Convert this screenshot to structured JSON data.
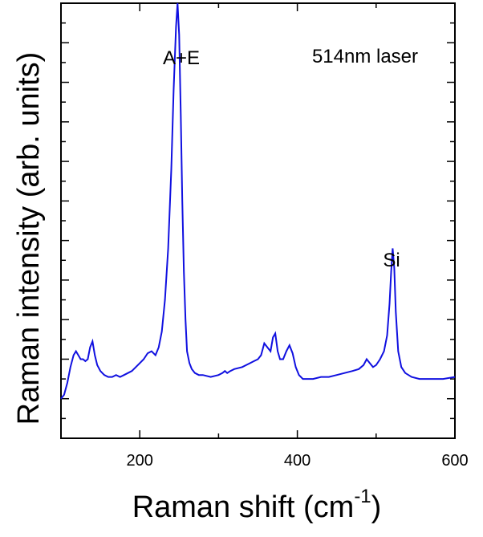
{
  "chart_data": {
    "type": "line",
    "title": "",
    "xlabel": "Raman shift (cm",
    "xlabel_sup": "-1",
    "xlabel_close": ")",
    "ylabel": "Raman intensity (arb. units)",
    "xlim": [
      100,
      600
    ],
    "ylim": [
      -0.1,
      1.0
    ],
    "x_ticks": [
      200,
      400,
      600
    ],
    "y_tick_labels_shown": false,
    "grid": false,
    "line_color": "#1010e0",
    "annotations": [
      {
        "text": "514nm laser",
        "x": 458,
        "y": 0.92
      },
      {
        "text": "A+E",
        "x": 250,
        "y": 0.92
      },
      {
        "text": "Si",
        "x": 521,
        "y": 0.43
      }
    ],
    "series": [
      {
        "x": [
          100,
          104,
          108,
          112,
          116,
          119,
          122,
          125,
          128,
          131,
          134,
          137,
          140,
          143,
          146,
          150,
          155,
          160,
          165,
          170,
          175,
          180,
          185,
          190,
          195,
          200,
          205,
          210,
          215,
          220,
          224,
          228,
          232,
          236,
          240,
          243,
          246,
          248,
          250,
          252,
          254,
          256,
          258,
          260,
          263,
          266,
          270,
          275,
          280,
          290,
          300,
          305,
          308,
          311,
          315,
          320,
          330,
          340,
          345,
          350,
          354,
          358,
          362,
          366,
          369,
          372,
          375,
          378,
          382,
          386,
          390,
          394,
          398,
          402,
          407,
          412,
          420,
          430,
          440,
          450,
          460,
          470,
          478,
          484,
          488,
          492,
          496,
          500,
          505,
          510,
          514,
          517,
          519,
          521,
          523,
          525,
          528,
          532,
          537,
          545,
          555,
          570,
          585,
          600
        ],
        "y": [
          0.0,
          0.01,
          0.04,
          0.08,
          0.11,
          0.12,
          0.11,
          0.1,
          0.1,
          0.095,
          0.1,
          0.13,
          0.145,
          0.11,
          0.085,
          0.07,
          0.06,
          0.055,
          0.055,
          0.06,
          0.055,
          0.06,
          0.065,
          0.07,
          0.08,
          0.09,
          0.1,
          0.115,
          0.12,
          0.11,
          0.13,
          0.17,
          0.25,
          0.38,
          0.58,
          0.78,
          0.94,
          1.0,
          0.92,
          0.72,
          0.5,
          0.32,
          0.2,
          0.12,
          0.09,
          0.075,
          0.065,
          0.06,
          0.06,
          0.055,
          0.06,
          0.065,
          0.07,
          0.065,
          0.07,
          0.075,
          0.08,
          0.09,
          0.095,
          0.1,
          0.11,
          0.14,
          0.13,
          0.12,
          0.155,
          0.165,
          0.12,
          0.1,
          0.1,
          0.12,
          0.135,
          0.115,
          0.08,
          0.06,
          0.05,
          0.05,
          0.05,
          0.055,
          0.055,
          0.06,
          0.065,
          0.07,
          0.075,
          0.085,
          0.1,
          0.09,
          0.08,
          0.085,
          0.1,
          0.12,
          0.16,
          0.24,
          0.32,
          0.38,
          0.33,
          0.22,
          0.12,
          0.08,
          0.065,
          0.055,
          0.05,
          0.05,
          0.05,
          0.055
        ]
      }
    ]
  }
}
